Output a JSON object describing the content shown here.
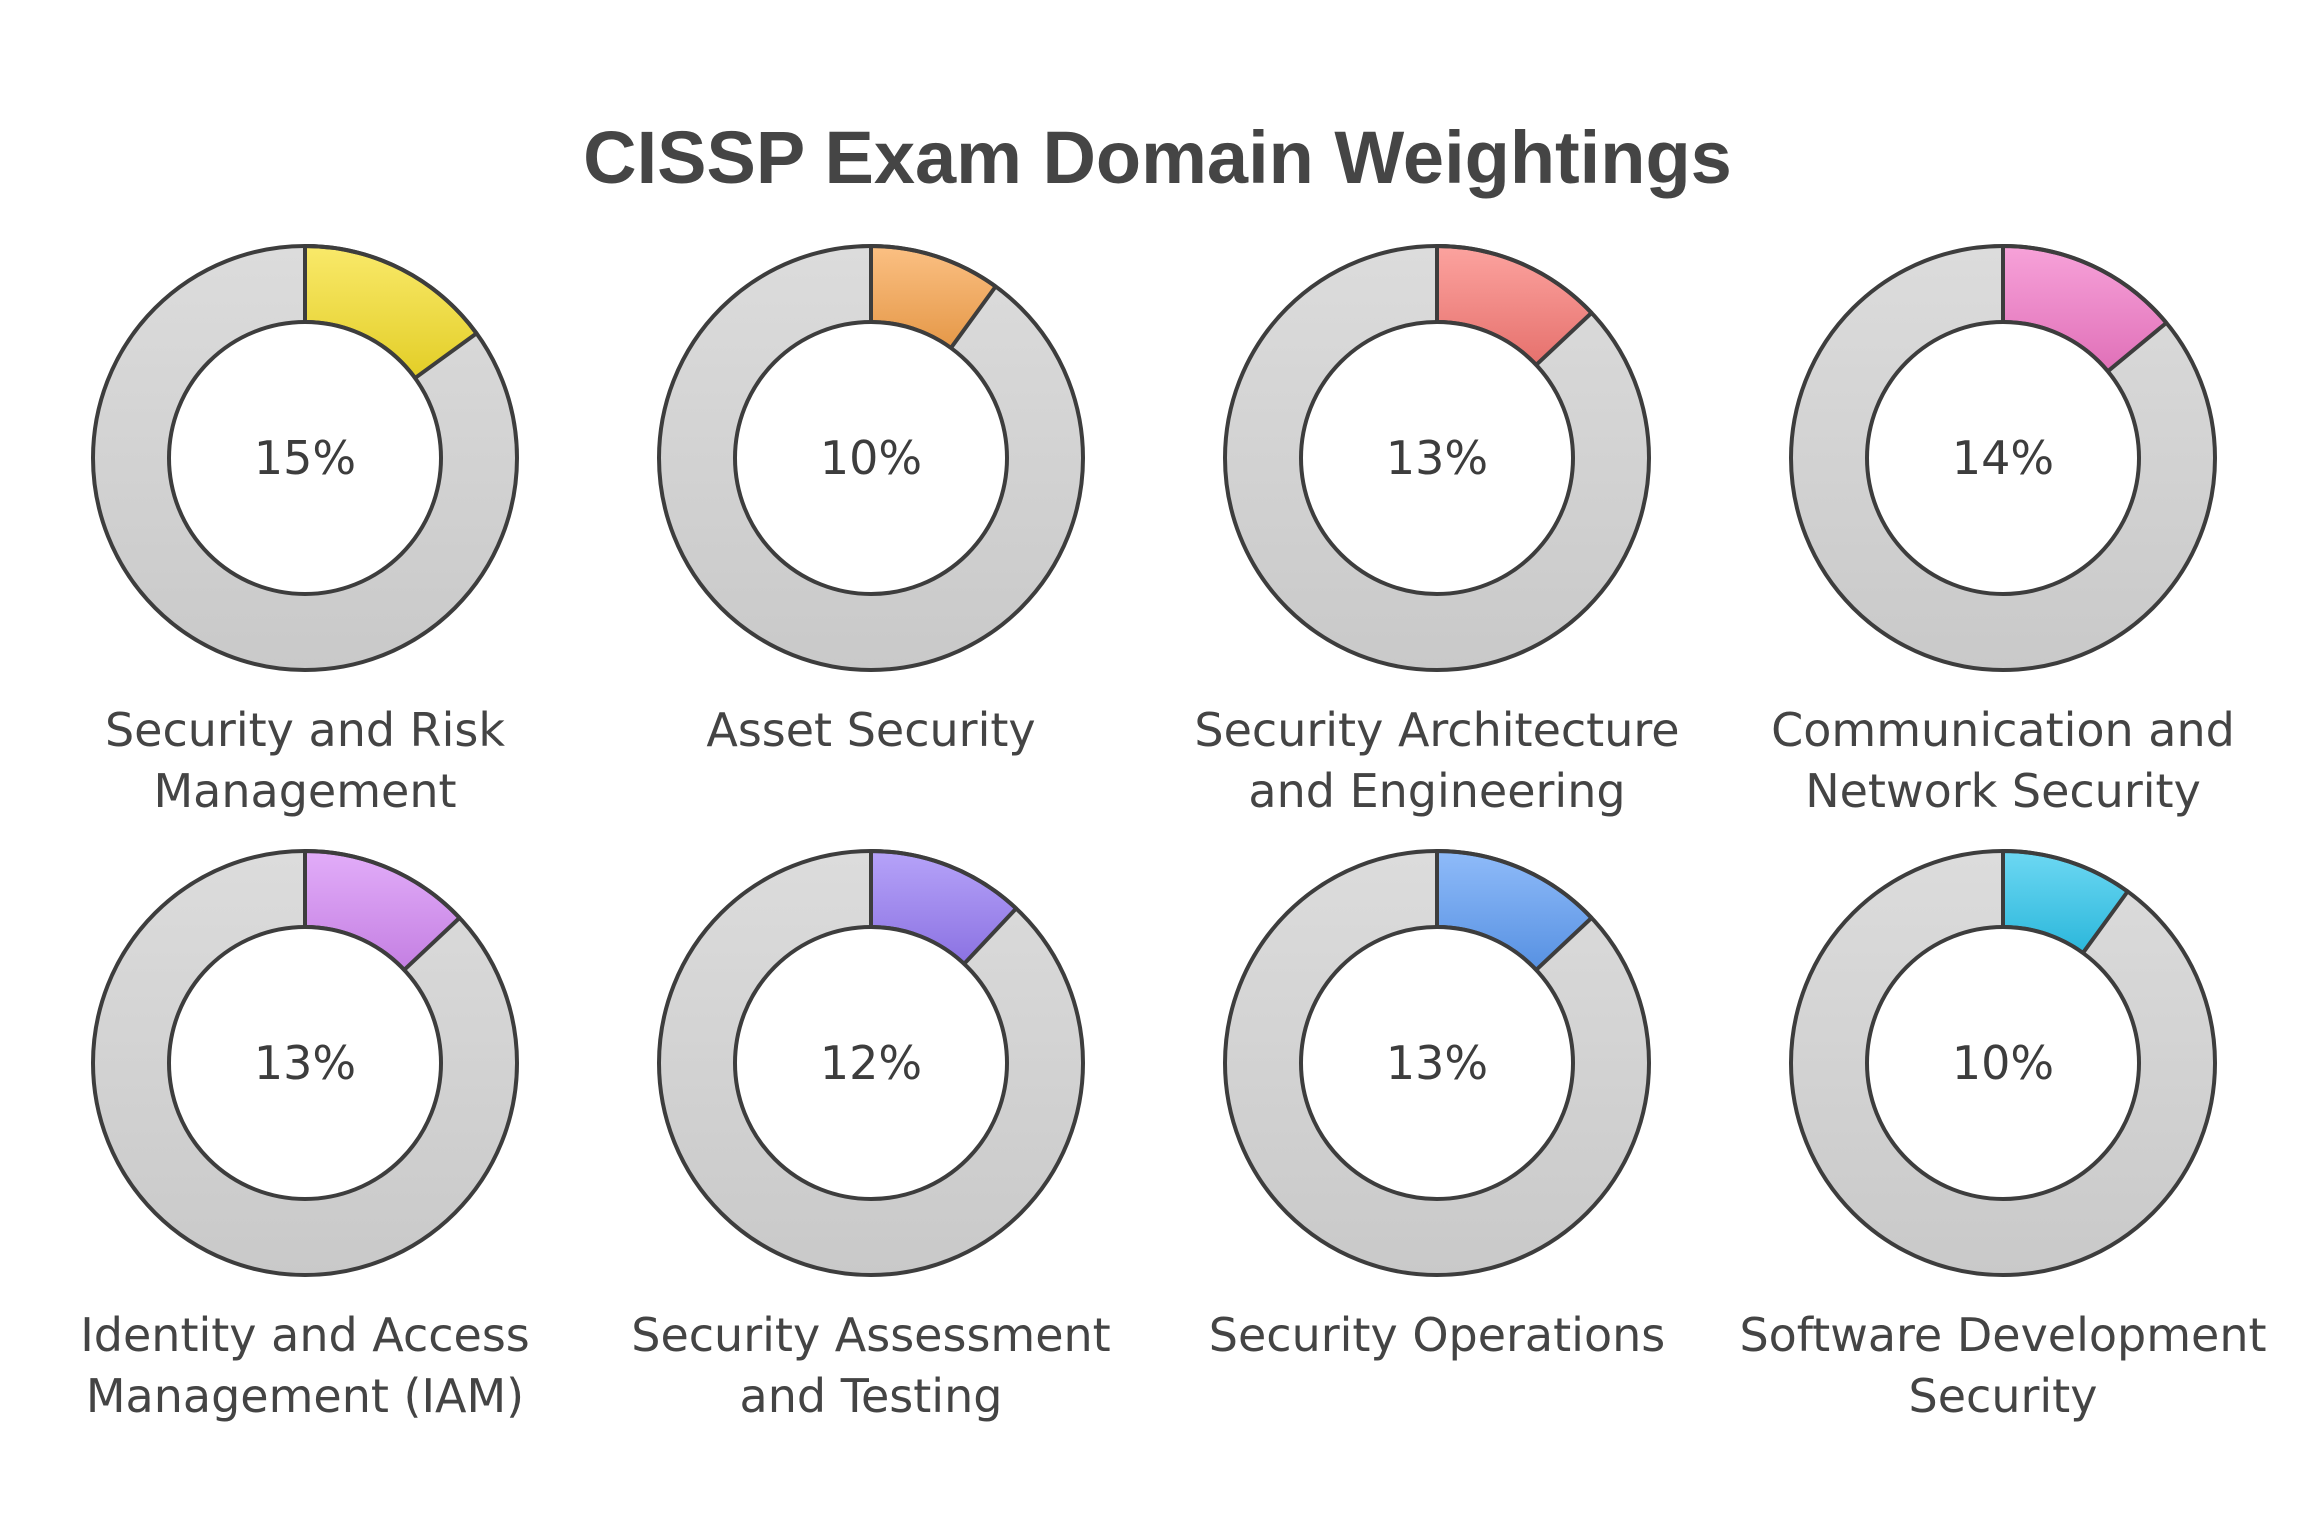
{
  "title": "CISSP Exam Domain Weightings",
  "chart_data": {
    "type": "pie",
    "title": "CISSP Exam Domain Weightings",
    "unit": "%",
    "series": [
      {
        "label_lines": [
          "Security and Risk",
          "Management"
        ],
        "value": 15,
        "value_label": "15%",
        "color": "#f7e02a"
      },
      {
        "label_lines": [
          "Asset Security"
        ],
        "value": 10,
        "value_label": "10%",
        "color": "#f9a54e"
      },
      {
        "label_lines": [
          "Security Architecture",
          "and Engineering"
        ],
        "value": 13,
        "value_label": "13%",
        "color": "#fa7b76"
      },
      {
        "label_lines": [
          "Communication and",
          "Network Security"
        ],
        "value": 14,
        "value_label": "14%",
        "color": "#f37ac8"
      },
      {
        "label_lines": [
          "Identity and Access",
          "Management (IAM)"
        ],
        "value": 13,
        "value_label": "13%",
        "color": "#d58af6"
      },
      {
        "label_lines": [
          "Security Assessment",
          "and Testing"
        ],
        "value": 12,
        "value_label": "12%",
        "color": "#977cf6"
      },
      {
        "label_lines": [
          "Security Operations"
        ],
        "value": 13,
        "value_label": "13%",
        "color": "#5f9ef6"
      },
      {
        "label_lines": [
          "Software Development",
          "Security"
        ],
        "value": 10,
        "value_label": "10%",
        "color": "#2fc7ee"
      }
    ]
  }
}
